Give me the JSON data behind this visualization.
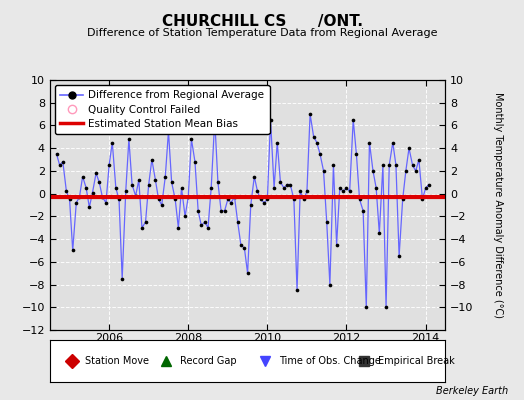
{
  "title": "CHURCHILL CS      /ONT.",
  "subtitle": "Difference of Station Temperature Data from Regional Average",
  "ylabel_right": "Monthly Temperature Anomaly Difference (°C)",
  "ylim": [
    -12,
    10
  ],
  "xlim": [
    2004.5,
    2014.5
  ],
  "bias_value": -0.3,
  "bg_color": "#e8e8e8",
  "plot_bg_color": "#e0e0e0",
  "line_color": "#6666ff",
  "dot_color": "#000000",
  "bias_color": "#dd0000",
  "xticks": [
    2006,
    2008,
    2010,
    2012,
    2014
  ],
  "yticks_right": [
    -10,
    -8,
    -6,
    -4,
    -2,
    0,
    2,
    4,
    6,
    8,
    10
  ],
  "yticks_left": [
    -12,
    -10,
    -8,
    -6,
    -4,
    -2,
    0,
    2,
    4,
    6,
    8,
    10
  ],
  "data_x": [
    2004.67,
    2004.75,
    2004.83,
    2004.92,
    2005.0,
    2005.08,
    2005.17,
    2005.25,
    2005.33,
    2005.42,
    2005.5,
    2005.58,
    2005.67,
    2005.75,
    2005.83,
    2005.92,
    2006.0,
    2006.08,
    2006.17,
    2006.25,
    2006.33,
    2006.42,
    2006.5,
    2006.58,
    2006.67,
    2006.75,
    2006.83,
    2006.92,
    2007.0,
    2007.08,
    2007.17,
    2007.25,
    2007.33,
    2007.42,
    2007.5,
    2007.58,
    2007.67,
    2007.75,
    2007.83,
    2007.92,
    2008.0,
    2008.08,
    2008.17,
    2008.25,
    2008.33,
    2008.42,
    2008.5,
    2008.58,
    2008.67,
    2008.75,
    2008.83,
    2008.92,
    2009.0,
    2009.08,
    2009.17,
    2009.25,
    2009.33,
    2009.42,
    2009.5,
    2009.58,
    2009.67,
    2009.75,
    2009.83,
    2009.92,
    2010.0,
    2010.08,
    2010.17,
    2010.25,
    2010.33,
    2010.42,
    2010.5,
    2010.58,
    2010.67,
    2010.75,
    2010.83,
    2010.92,
    2011.0,
    2011.08,
    2011.17,
    2011.25,
    2011.33,
    2011.42,
    2011.5,
    2011.58,
    2011.67,
    2011.75,
    2011.83,
    2011.92,
    2012.0,
    2012.08,
    2012.17,
    2012.25,
    2012.33,
    2012.42,
    2012.5,
    2012.58,
    2012.67,
    2012.75,
    2012.83,
    2012.92,
    2013.0,
    2013.08,
    2013.17,
    2013.25,
    2013.33,
    2013.42,
    2013.5,
    2013.58,
    2013.67,
    2013.75,
    2013.83,
    2013.92,
    2014.0,
    2014.08
  ],
  "data_y": [
    3.5,
    2.5,
    2.8,
    0.2,
    -0.5,
    -5.0,
    -0.8,
    -0.3,
    1.5,
    0.5,
    -1.2,
    0.1,
    1.8,
    1.0,
    -0.3,
    -0.8,
    2.5,
    4.5,
    0.5,
    -0.5,
    -7.5,
    0.2,
    4.8,
    0.8,
    -0.2,
    1.2,
    -3.0,
    -2.5,
    0.8,
    3.0,
    1.2,
    -0.5,
    -1.0,
    1.5,
    5.5,
    1.0,
    -0.5,
    -3.0,
    0.5,
    -2.0,
    -0.3,
    4.8,
    2.8,
    -1.5,
    -2.8,
    -2.5,
    -3.0,
    0.5,
    6.5,
    1.0,
    -1.5,
    -1.5,
    -0.5,
    -0.8,
    -0.3,
    -2.5,
    -4.5,
    -4.8,
    -7.0,
    -1.0,
    1.5,
    0.2,
    -0.5,
    -0.8,
    -0.5,
    6.5,
    0.5,
    4.5,
    1.0,
    0.5,
    0.8,
    0.8,
    -0.5,
    -8.5,
    0.2,
    -0.5,
    0.2,
    7.0,
    5.0,
    4.5,
    3.5,
    2.0,
    -2.5,
    -8.0,
    2.5,
    -4.5,
    0.5,
    0.2,
    0.5,
    0.2,
    6.5,
    3.5,
    -0.5,
    -1.5,
    -10.0,
    4.5,
    2.0,
    0.5,
    -3.5,
    2.5,
    -10.0,
    2.5,
    4.5,
    2.5,
    -5.5,
    -0.5,
    2.0,
    4.0,
    2.5,
    2.0,
    3.0,
    -0.5,
    0.5,
    0.8
  ],
  "berkeley_earth_label": "Berkeley Earth",
  "footnote_items": [
    {
      "symbol": "D",
      "color": "#cc0000",
      "label": "Station Move"
    },
    {
      "symbol": "^",
      "color": "#006600",
      "label": "Record Gap"
    },
    {
      "symbol": "v",
      "color": "#4444ff",
      "label": "Time of Obs. Change"
    },
    {
      "symbol": "s",
      "color": "#333333",
      "label": "Empirical Break"
    }
  ]
}
